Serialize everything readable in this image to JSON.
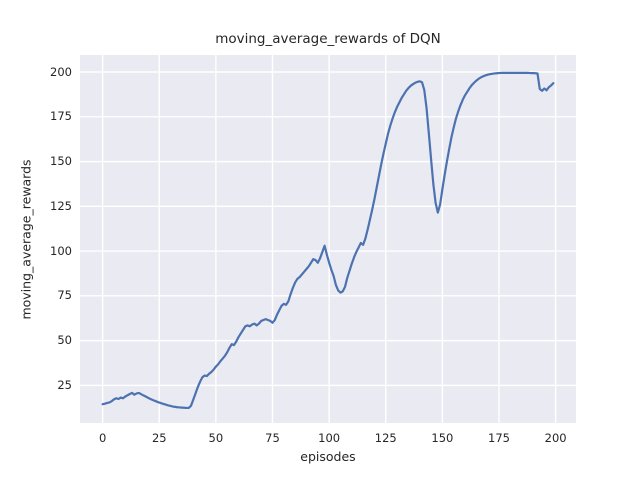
{
  "chart_data": {
    "type": "line",
    "title": "moving_average_rewards of DQN",
    "xlabel": "episodes",
    "ylabel": "moving_average_rewards",
    "legend_position": "none",
    "grid": true,
    "xlim": [
      -10,
      209
    ],
    "ylim": [
      4,
      209.5
    ],
    "xticks": [
      0,
      25,
      50,
      75,
      100,
      125,
      150,
      175,
      200
    ],
    "yticks": [
      25,
      50,
      75,
      100,
      125,
      150,
      175,
      200
    ],
    "colors": {
      "line": "#4C72B0",
      "axes_background": "#EAEAF2",
      "grid": "#FFFFFF",
      "figure_background": "#FFFFFF",
      "text": "#262626"
    },
    "series": [
      {
        "name": "moving_average_rewards",
        "x_start": 0,
        "x_step": 1,
        "y": [
          14.5,
          14.8,
          15.2,
          15.5,
          16.2,
          17.2,
          17.8,
          17.4,
          18.2,
          17.8,
          18.8,
          19.5,
          20.2,
          20.8,
          19.8,
          20.5,
          20.8,
          20.1,
          19.4,
          18.8,
          18.1,
          17.5,
          16.9,
          16.4,
          15.9,
          15.4,
          15.0,
          14.6,
          14.2,
          13.8,
          13.5,
          13.2,
          13.0,
          12.8,
          12.7,
          12.6,
          12.5,
          12.4,
          12.4,
          13.6,
          17.0,
          20.5,
          24.0,
          27.0,
          29.5,
          30.5,
          30.2,
          31.5,
          32.5,
          33.8,
          35.5,
          36.8,
          38.5,
          40.0,
          41.5,
          43.5,
          46.0,
          48.0,
          47.5,
          49.5,
          52.0,
          54.0,
          56.0,
          58.0,
          58.5,
          58.0,
          59.0,
          59.5,
          58.5,
          59.5,
          61.0,
          61.5,
          62.0,
          61.5,
          61.0,
          60.0,
          61.5,
          64.5,
          67.0,
          69.5,
          70.5,
          70.0,
          72.0,
          76.0,
          79.5,
          82.5,
          84.5,
          85.5,
          87.0,
          88.5,
          90.0,
          91.5,
          93.5,
          95.5,
          95.0,
          93.5,
          96.0,
          99.5,
          103.0,
          98.0,
          93.5,
          89.5,
          86.0,
          81.0,
          78.0,
          76.8,
          77.5,
          80.0,
          85.0,
          89.0,
          93.0,
          96.5,
          99.5,
          102.0,
          104.5,
          103.5,
          107.0,
          112.0,
          117.5,
          123.0,
          129.0,
          135.5,
          142.0,
          148.5,
          154.5,
          160.0,
          165.5,
          170.0,
          174.0,
          177.5,
          180.5,
          183.0,
          185.5,
          187.5,
          189.5,
          191.0,
          192.3,
          193.2,
          194.0,
          194.5,
          194.8,
          194.3,
          190.0,
          180.0,
          166.0,
          151.5,
          137.5,
          127.0,
          121.5,
          126.0,
          134.5,
          142.5,
          150.0,
          157.0,
          163.5,
          169.0,
          174.0,
          178.0,
          181.5,
          184.5,
          187.0,
          189.0,
          191.0,
          192.7,
          194.0,
          195.2,
          196.2,
          197.0,
          197.6,
          198.1,
          198.5,
          198.8,
          199.0,
          199.2,
          199.3,
          199.4,
          199.5,
          199.5,
          199.5,
          199.5,
          199.5,
          199.5,
          199.5,
          199.5,
          199.5,
          199.5,
          199.5,
          199.5,
          199.5,
          199.4,
          199.4,
          199.3,
          199.2,
          190.5,
          189.5,
          190.8,
          189.8,
          191.5,
          192.5,
          193.8
        ]
      }
    ]
  }
}
